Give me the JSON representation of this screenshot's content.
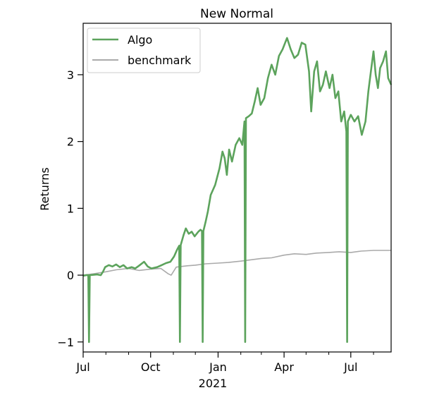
{
  "chart_data": {
    "type": "line",
    "title": "New Normal",
    "ylabel": "Returns",
    "xlabel": "",
    "x_range": [
      "2020-07-01",
      "2021-08-25"
    ],
    "ylim": [
      -1.15,
      3.77
    ],
    "y_ticks": [
      -1,
      0,
      1,
      2,
      3
    ],
    "y_tick_labels": [
      "−1",
      "0",
      "1",
      "2",
      "3"
    ],
    "x_ticks": [
      {
        "date": "2020-07-01",
        "label": "Jul"
      },
      {
        "date": "2020-10-01",
        "label": "Oct"
      },
      {
        "date": "2021-01-01",
        "label": "Jan"
      },
      {
        "date": "2021-04-01",
        "label": "Apr"
      },
      {
        "date": "2021-07-01",
        "label": "Jul"
      }
    ],
    "x_minor_ticks": [
      "2020-08-01",
      "2020-09-01",
      "2020-11-01",
      "2020-12-01",
      "2021-02-01",
      "2021-03-01",
      "2021-05-01",
      "2021-06-01",
      "2021-08-01"
    ],
    "x_year_label": "2021",
    "grid": false,
    "legend": {
      "placement": "top-left",
      "entries": [
        "Algo",
        "benchmark"
      ]
    },
    "series": [
      {
        "name": "Algo",
        "color": "#5ca35c",
        "points": [
          [
            "2020-07-01",
            -0.01
          ],
          [
            "2020-07-05",
            0.0
          ],
          [
            "2020-07-08",
            0.0
          ],
          [
            "2020-07-09",
            -1.0
          ],
          [
            "2020-07-10",
            0.0
          ],
          [
            "2020-07-20",
            0.01
          ],
          [
            "2020-07-25",
            0.0
          ],
          [
            "2020-07-28",
            0.05
          ],
          [
            "2020-07-31",
            0.12
          ],
          [
            "2020-08-05",
            0.15
          ],
          [
            "2020-08-10",
            0.13
          ],
          [
            "2020-08-15",
            0.16
          ],
          [
            "2020-08-20",
            0.12
          ],
          [
            "2020-08-25",
            0.15
          ],
          [
            "2020-08-30",
            0.1
          ],
          [
            "2020-09-05",
            0.12
          ],
          [
            "2020-09-10",
            0.1
          ],
          [
            "2020-09-15",
            0.14
          ],
          [
            "2020-09-22",
            0.2
          ],
          [
            "2020-09-27",
            0.13
          ],
          [
            "2020-10-02",
            0.1
          ],
          [
            "2020-10-10",
            0.12
          ],
          [
            "2020-10-16",
            0.15
          ],
          [
            "2020-10-22",
            0.18
          ],
          [
            "2020-10-28",
            0.2
          ],
          [
            "2020-11-02",
            0.28
          ],
          [
            "2020-11-06",
            0.38
          ],
          [
            "2020-11-09",
            0.44
          ],
          [
            "2020-11-10",
            -1.0
          ],
          [
            "2020-11-11",
            0.45
          ],
          [
            "2020-11-15",
            0.6
          ],
          [
            "2020-11-18",
            0.7
          ],
          [
            "2020-11-22",
            0.62
          ],
          [
            "2020-11-26",
            0.65
          ],
          [
            "2020-11-30",
            0.58
          ],
          [
            "2020-12-05",
            0.65
          ],
          [
            "2020-12-08",
            0.68
          ],
          [
            "2020-12-10",
            0.66
          ],
          [
            "2020-12-11",
            -1.0
          ],
          [
            "2020-12-12",
            0.66
          ],
          [
            "2020-12-15",
            0.8
          ],
          [
            "2020-12-18",
            0.95
          ],
          [
            "2020-12-22",
            1.2
          ],
          [
            "2020-12-28",
            1.35
          ],
          [
            "2021-01-03",
            1.6
          ],
          [
            "2021-01-07",
            1.85
          ],
          [
            "2021-01-10",
            1.75
          ],
          [
            "2021-01-13",
            1.5
          ],
          [
            "2021-01-16",
            1.88
          ],
          [
            "2021-01-20",
            1.7
          ],
          [
            "2021-01-25",
            1.95
          ],
          [
            "2021-01-30",
            2.05
          ],
          [
            "2021-02-03",
            1.95
          ],
          [
            "2021-02-06",
            2.3
          ],
          [
            "2021-02-07",
            -1.0
          ],
          [
            "2021-02-08",
            2.35
          ],
          [
            "2021-02-12",
            2.38
          ],
          [
            "2021-02-16",
            2.42
          ],
          [
            "2021-02-20",
            2.6
          ],
          [
            "2021-02-24",
            2.8
          ],
          [
            "2021-02-28",
            2.55
          ],
          [
            "2021-03-05",
            2.65
          ],
          [
            "2021-03-10",
            2.95
          ],
          [
            "2021-03-15",
            3.15
          ],
          [
            "2021-03-20",
            3.0
          ],
          [
            "2021-03-25",
            3.28
          ],
          [
            "2021-03-30",
            3.38
          ],
          [
            "2021-04-05",
            3.55
          ],
          [
            "2021-04-10",
            3.38
          ],
          [
            "2021-04-15",
            3.25
          ],
          [
            "2021-04-20",
            3.3
          ],
          [
            "2021-04-25",
            3.48
          ],
          [
            "2021-04-30",
            3.45
          ],
          [
            "2021-05-05",
            3.05
          ],
          [
            "2021-05-08",
            2.45
          ],
          [
            "2021-05-12",
            3.05
          ],
          [
            "2021-05-16",
            3.2
          ],
          [
            "2021-05-20",
            2.75
          ],
          [
            "2021-05-24",
            2.85
          ],
          [
            "2021-05-28",
            3.05
          ],
          [
            "2021-06-02",
            2.8
          ],
          [
            "2021-06-06",
            3.0
          ],
          [
            "2021-06-10",
            2.65
          ],
          [
            "2021-06-14",
            2.75
          ],
          [
            "2021-06-18",
            2.3
          ],
          [
            "2021-06-22",
            2.45
          ],
          [
            "2021-06-25",
            2.15
          ],
          [
            "2021-06-26",
            -1.0
          ],
          [
            "2021-06-27",
            2.3
          ],
          [
            "2021-07-01",
            2.4
          ],
          [
            "2021-07-06",
            2.3
          ],
          [
            "2021-07-11",
            2.38
          ],
          [
            "2021-07-16",
            2.1
          ],
          [
            "2021-07-21",
            2.3
          ],
          [
            "2021-07-25",
            2.75
          ],
          [
            "2021-07-29",
            3.1
          ],
          [
            "2021-08-01",
            3.35
          ],
          [
            "2021-08-04",
            3.0
          ],
          [
            "2021-08-07",
            2.8
          ],
          [
            "2021-08-10",
            3.1
          ],
          [
            "2021-08-14",
            3.2
          ],
          [
            "2021-08-18",
            3.35
          ],
          [
            "2021-08-21",
            2.95
          ],
          [
            "2021-08-25",
            2.85
          ]
        ]
      },
      {
        "name": "benchmark",
        "color": "#aaaaaa",
        "points": [
          [
            "2020-07-01",
            0.0
          ],
          [
            "2020-07-15",
            0.02
          ],
          [
            "2020-08-01",
            0.05
          ],
          [
            "2020-08-15",
            0.08
          ],
          [
            "2020-09-01",
            0.1
          ],
          [
            "2020-09-15",
            0.07
          ],
          [
            "2020-10-01",
            0.09
          ],
          [
            "2020-10-15",
            0.1
          ],
          [
            "2020-10-25",
            0.02
          ],
          [
            "2020-10-29",
            0.0
          ],
          [
            "2020-11-05",
            0.12
          ],
          [
            "2020-11-20",
            0.14
          ],
          [
            "2020-12-01",
            0.15
          ],
          [
            "2020-12-15",
            0.17
          ],
          [
            "2021-01-01",
            0.18
          ],
          [
            "2021-01-15",
            0.19
          ],
          [
            "2021-02-01",
            0.21
          ],
          [
            "2021-02-15",
            0.23
          ],
          [
            "2021-03-01",
            0.25
          ],
          [
            "2021-03-15",
            0.26
          ],
          [
            "2021-04-01",
            0.3
          ],
          [
            "2021-04-15",
            0.32
          ],
          [
            "2021-05-01",
            0.31
          ],
          [
            "2021-05-15",
            0.33
          ],
          [
            "2021-06-01",
            0.34
          ],
          [
            "2021-06-15",
            0.35
          ],
          [
            "2021-07-01",
            0.34
          ],
          [
            "2021-07-15",
            0.36
          ],
          [
            "2021-08-01",
            0.37
          ],
          [
            "2021-08-25",
            0.37
          ]
        ]
      }
    ]
  }
}
